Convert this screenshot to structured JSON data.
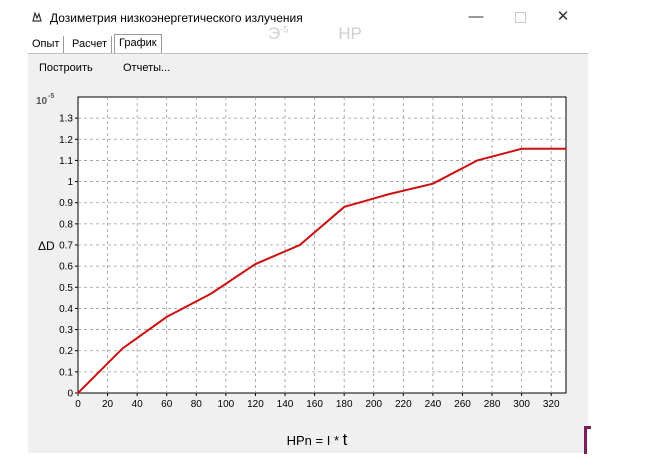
{
  "window": {
    "title": "Дозиметрия низкоэнергетического излучения",
    "ghost_title": "Э",
    "ghost_exponent": "-5",
    "ghost_suffix": "HP"
  },
  "window_controls": {
    "minimize": "—",
    "close": "✕"
  },
  "tabs": [
    {
      "label": "Опыт",
      "active": false
    },
    {
      "label": "Расчет",
      "active": false
    },
    {
      "label": "График",
      "active": true
    }
  ],
  "toolbar": {
    "build_label": "Построить",
    "reports_label": "Отчеты..."
  },
  "colors": {
    "series": "#cc1010",
    "plot_bg": "#ffffff",
    "panel_bg": "#f0f0f0",
    "grid": "#9a9a9a"
  },
  "icons": {
    "app": "radiation-app-icon"
  },
  "chart_data": {
    "type": "line",
    "title": "",
    "y_multiplier": "10",
    "y_multiplier_exponent": "-5",
    "ylabel": "ΔD",
    "xlabel_main": "HPn = I * ",
    "xlabel_var": "t",
    "xlim": [
      0,
      330
    ],
    "ylim": [
      0,
      1.4
    ],
    "x_ticks": [
      0,
      20,
      40,
      60,
      80,
      100,
      120,
      140,
      160,
      180,
      200,
      220,
      240,
      260,
      280,
      300,
      320
    ],
    "y_ticks": [
      0,
      0.1,
      0.2,
      0.3,
      0.4,
      0.5,
      0.6,
      0.7,
      0.8,
      0.9,
      1,
      1.1,
      1.2,
      1.3
    ],
    "grid": true,
    "legend": "none",
    "series": [
      {
        "x": [
          0,
          30,
          60,
          90,
          120,
          150,
          180,
          210,
          240,
          270,
          300,
          330
        ],
        "values": [
          0,
          0.21,
          0.36,
          0.47,
          0.61,
          0.7,
          0.88,
          0.94,
          0.99,
          1.1,
          1.155,
          1.155
        ]
      }
    ]
  }
}
